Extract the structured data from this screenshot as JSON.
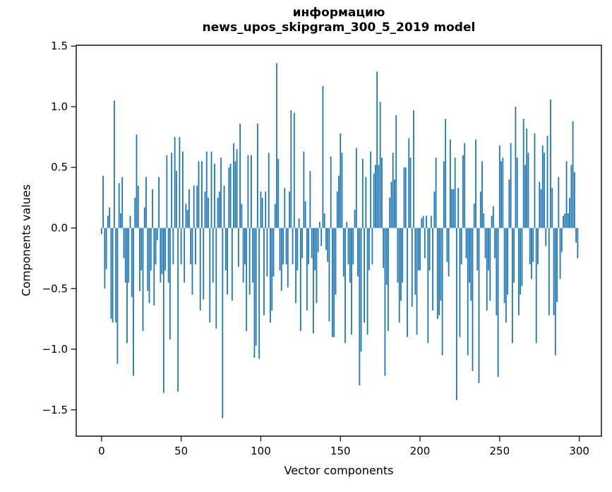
{
  "chart_data": {
    "type": "bar",
    "title": "информацию",
    "subtitle": "news_upos_skipgram_300_5_2019 model",
    "xlabel": "Vector components",
    "ylabel": "Components values",
    "legend": null,
    "grid": false,
    "bar_color": "#1f77b4",
    "spine_color": "#000000",
    "xlim": [
      -15.9,
      313.9
    ],
    "ylim": [
      -1.717,
      1.507
    ],
    "x_ticks": [
      {
        "value": 0,
        "label": "0"
      },
      {
        "value": 50,
        "label": "50"
      },
      {
        "value": 100,
        "label": "100"
      },
      {
        "value": 150,
        "label": "150"
      },
      {
        "value": 200,
        "label": "200"
      },
      {
        "value": 250,
        "label": "250"
      },
      {
        "value": 300,
        "label": "300"
      }
    ],
    "y_ticks": [
      {
        "value": 1.5,
        "label": "1.5"
      },
      {
        "value": 1.0,
        "label": "1.0"
      },
      {
        "value": 0.5,
        "label": "0.5"
      },
      {
        "value": 0.0,
        "label": "0.0"
      },
      {
        "value": -0.5,
        "label": "−0.5"
      },
      {
        "value": -1.0,
        "label": "−1.0"
      },
      {
        "value": -1.5,
        "label": "−1.5"
      }
    ],
    "n_bars": 300,
    "x_start": 0,
    "values": [
      -0.05,
      0.43,
      -0.5,
      -0.34,
      0.1,
      0.17,
      -0.75,
      -0.78,
      1.05,
      -0.78,
      -1.12,
      0.37,
      0.12,
      0.42,
      -0.25,
      -0.45,
      -0.95,
      -0.45,
      0.1,
      -0.57,
      -1.22,
      0.25,
      0.77,
      0.35,
      -0.52,
      -0.35,
      -0.85,
      0.17,
      0.42,
      -0.52,
      -0.62,
      -0.35,
      0.32,
      -0.64,
      -0.3,
      -0.1,
      0.42,
      -0.45,
      -0.38,
      -1.36,
      -0.35,
      0.6,
      -0.45,
      -0.92,
      0.62,
      -0.3,
      0.75,
      0.47,
      -1.35,
      0.75,
      -0.3,
      0.63,
      -0.45,
      0.2,
      0.15,
      0.32,
      -0.3,
      -0.55,
      0.35,
      -0.3,
      0.35,
      0.55,
      -0.68,
      0.55,
      -0.59,
      0.3,
      0.63,
      0.25,
      -0.78,
      0.63,
      -0.45,
      0.53,
      -0.83,
      0.25,
      0.3,
      0.58,
      -1.57,
      0.35,
      -0.35,
      -0.55,
      0.5,
      0.53,
      -0.6,
      0.7,
      0.55,
      0.65,
      -0.32,
      0.86,
      0.2,
      -0.45,
      -0.3,
      -0.85,
      0.6,
      -0.55,
      0.6,
      -0.45,
      -1.07,
      -0.97,
      0.86,
      -1.08,
      0.3,
      0.25,
      -0.72,
      0.3,
      -0.4,
      0.62,
      -0.78,
      -0.68,
      -0.4,
      0.2,
      1.36,
      0.57,
      -0.35,
      -0.52,
      -0.3,
      0.33,
      -0.3,
      -0.49,
      0.3,
      0.97,
      -0.3,
      0.95,
      -0.62,
      -0.35,
      0.08,
      -0.85,
      -0.25,
      0.63,
      0.22,
      -0.68,
      -0.3,
      0.47,
      -0.25,
      -0.87,
      -0.35,
      -0.62,
      -0.2,
      0.05,
      -0.15,
      1.17,
      0.12,
      -0.18,
      -0.28,
      -0.77,
      0.59,
      -0.9,
      -0.9,
      -0.55,
      0.3,
      0.43,
      0.78,
      0.62,
      -0.4,
      -0.95,
      0.05,
      -0.3,
      -0.45,
      -0.88,
      -0.3,
      0.15,
      0.66,
      -0.4,
      -1.3,
      -1.02,
      0.57,
      -0.78,
      0.42,
      -0.88,
      -0.35,
      0.63,
      -0.3,
      0.45,
      0.52,
      1.29,
      0.52,
      1.04,
      0.58,
      -0.33,
      -1.22,
      -0.47,
      -0.85,
      0.25,
      0.38,
      0.62,
      0.4,
      0.93,
      -0.45,
      -0.78,
      -0.6,
      -0.45,
      0.5,
      0.5,
      -0.9,
      0.74,
      0.58,
      -0.65,
      0.97,
      -0.55,
      -0.88,
      -0.35,
      -0.35,
      0.08,
      0.1,
      -0.25,
      0.1,
      -0.95,
      -0.35,
      0.1,
      -0.68,
      0.3,
      0.58,
      -0.75,
      -0.72,
      -0.6,
      -1.05,
      0.55,
      0.9,
      -0.28,
      -0.4,
      0.73,
      0.32,
      0.32,
      0.58,
      -1.42,
      0.33,
      -0.9,
      -0.3,
      0.6,
      0.7,
      -0.25,
      -1.05,
      -0.45,
      -0.6,
      -1.18,
      0.2,
      0.73,
      -0.35,
      -1.28,
      0.3,
      0.55,
      0.12,
      -0.25,
      -0.68,
      -0.35,
      -0.6,
      0.1,
      0.18,
      -0.25,
      -0.72,
      -1.23,
      0.68,
      0.55,
      0.58,
      -0.62,
      -0.78,
      -0.55,
      0.4,
      0.7,
      -0.95,
      -0.45,
      1.0,
      0.58,
      -0.72,
      -0.55,
      -0.48,
      0.9,
      0.52,
      0.82,
      0.62,
      -0.3,
      -0.42,
      -0.28,
      0.78,
      -0.95,
      -0.3,
      0.38,
      0.32,
      0.68,
      0.62,
      -0.15,
      0.76,
      -0.72,
      1.06,
      0.33,
      -0.72,
      -1.05,
      -0.61,
      0.42,
      -0.42,
      -0.2,
      0.1,
      0.12,
      0.55,
      0.12,
      0.25,
      0.52,
      0.88,
      0.46,
      -0.12,
      -0.25
    ]
  }
}
